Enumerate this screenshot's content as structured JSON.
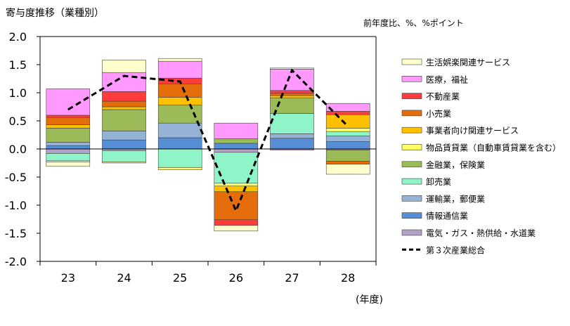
{
  "chart_data": {
    "type": "bar",
    "stacked": true,
    "title": "寄与度推移（業種別）",
    "unit_note": "前年度比、%、%ポイント",
    "xlabel": "(年度)",
    "categories": [
      "23",
      "24",
      "25",
      "26",
      "27",
      "28"
    ],
    "ylim": [
      -2.0,
      2.0
    ],
    "yticks": [
      "2.0",
      "1.5",
      "1.0",
      "0.5",
      "0.0",
      "-0.5",
      "-1.0",
      "-1.5",
      "-2.0"
    ],
    "ytick_values": [
      2.0,
      1.5,
      1.0,
      0.5,
      0.0,
      -0.5,
      -1.0,
      -1.5,
      -2.0
    ],
    "grid": false,
    "legend_position": "right",
    "series": [
      {
        "name": "電気・ガス・熱供給・水道業",
        "color": "#B3A2C7",
        "values": [
          -0.08,
          -0.03,
          0.0,
          -0.06,
          -0.02,
          -0.02
        ]
      },
      {
        "name": "情報通信業",
        "color": "#558ED5",
        "values": [
          0.06,
          0.16,
          0.2,
          0.1,
          0.19,
          0.13
        ]
      },
      {
        "name": "運輸業，郵便業",
        "color": "#95B3D7",
        "values": [
          0.06,
          0.16,
          0.26,
          0.0,
          0.08,
          0.1
        ]
      },
      {
        "name": "卸売業",
        "color": "#8FF5C9",
        "values": [
          -0.13,
          -0.2,
          -0.33,
          -0.55,
          0.36,
          0.08
        ]
      },
      {
        "name": "金融業，保険業",
        "color": "#9BBB59",
        "values": [
          0.25,
          0.38,
          0.32,
          0.08,
          0.28,
          -0.2
        ]
      },
      {
        "name": "物品賃貸業（自動車賃貸業を含む）",
        "color": "#FFFF66",
        "values": [
          -0.02,
          -0.02,
          -0.04,
          -0.05,
          0.0,
          0.06
        ]
      },
      {
        "name": "事業者向け関連サービス",
        "color": "#FFC000",
        "values": [
          0.06,
          0.05,
          0.14,
          -0.1,
          0.04,
          0.24
        ]
      },
      {
        "name": "小売業",
        "color": "#E46C0A",
        "values": [
          0.13,
          0.1,
          0.24,
          -0.5,
          0.04,
          -0.05
        ]
      },
      {
        "name": "不動産業",
        "color": "#FF3B3B",
        "values": [
          0.04,
          0.17,
          0.1,
          -0.1,
          0.05,
          0.06
        ]
      },
      {
        "name": "医療，福祉",
        "color": "#FF99FF",
        "values": [
          0.47,
          0.34,
          0.3,
          0.28,
          0.38,
          0.14
        ]
      },
      {
        "name": "生活娯楽関連サービス",
        "color": "#FFFFCC",
        "values": [
          -0.08,
          0.22,
          0.05,
          -0.1,
          0.02,
          -0.18
        ]
      }
    ],
    "line": {
      "name": "第３次産業総合",
      "style": "dashed",
      "color": "#000000",
      "values": [
        0.7,
        1.3,
        1.2,
        -1.1,
        1.4,
        0.4
      ]
    }
  }
}
